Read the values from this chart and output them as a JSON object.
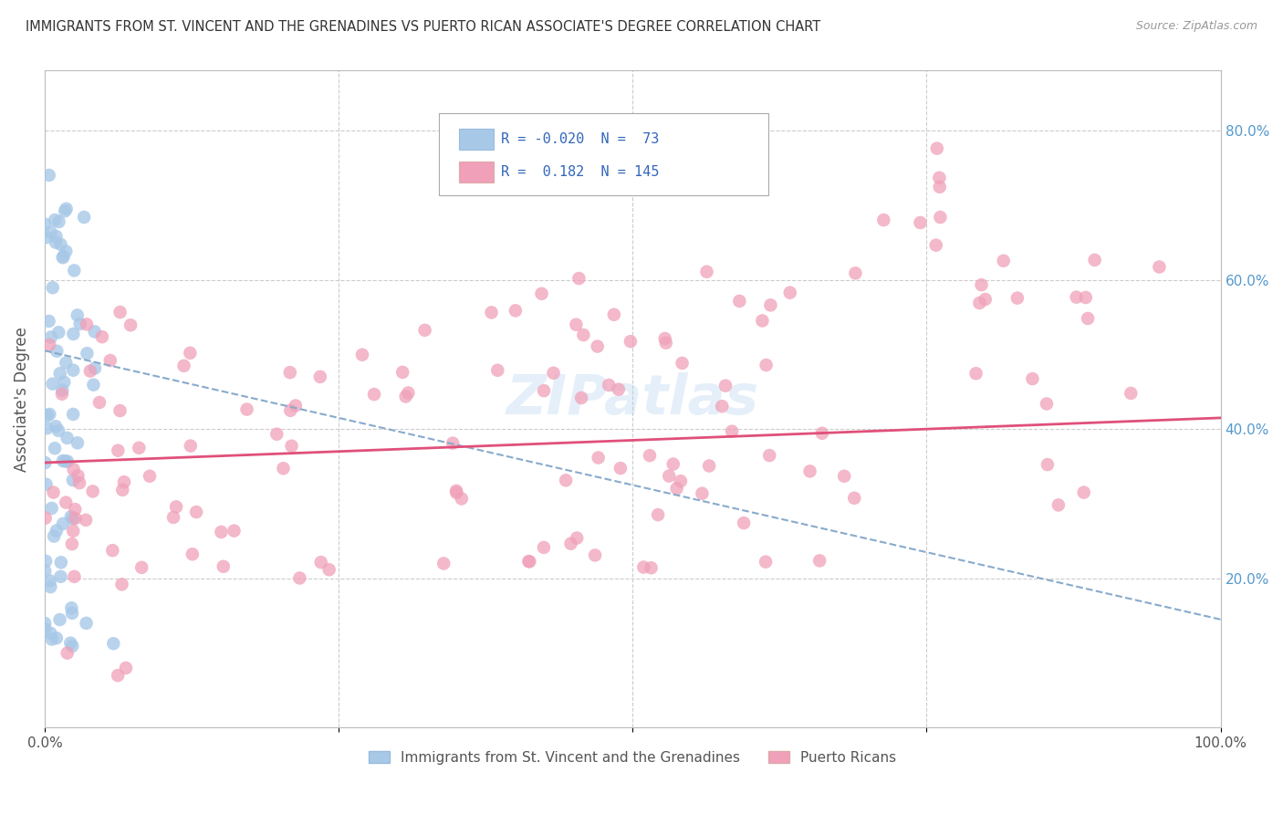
{
  "title": "IMMIGRANTS FROM ST. VINCENT AND THE GRENADINES VS PUERTO RICAN ASSOCIATE'S DEGREE CORRELATION CHART",
  "source": "Source: ZipAtlas.com",
  "ylabel": "Associate's Degree",
  "ytick_labels": [
    "20.0%",
    "40.0%",
    "60.0%",
    "80.0%"
  ],
  "ytick_values": [
    0.2,
    0.4,
    0.6,
    0.8
  ],
  "blue_R": -0.02,
  "blue_N": 73,
  "pink_R": 0.182,
  "pink_N": 145,
  "blue_color": "#a8c8e8",
  "pink_color": "#f0a0b8",
  "blue_line_color": "#88aacc",
  "pink_line_color": "#e0507a",
  "legend_blue_label": "Immigrants from St. Vincent and the Grenadines",
  "legend_pink_label": "Puerto Ricans",
  "background_color": "#ffffff",
  "grid_color": "#cccccc",
  "title_color": "#333333",
  "blue_line_start_y": 0.505,
  "blue_line_end_y": 0.145,
  "pink_line_start_y": 0.355,
  "pink_line_end_y": 0.415,
  "xlim": [
    0.0,
    1.0
  ],
  "ylim": [
    0.0,
    0.88
  ]
}
